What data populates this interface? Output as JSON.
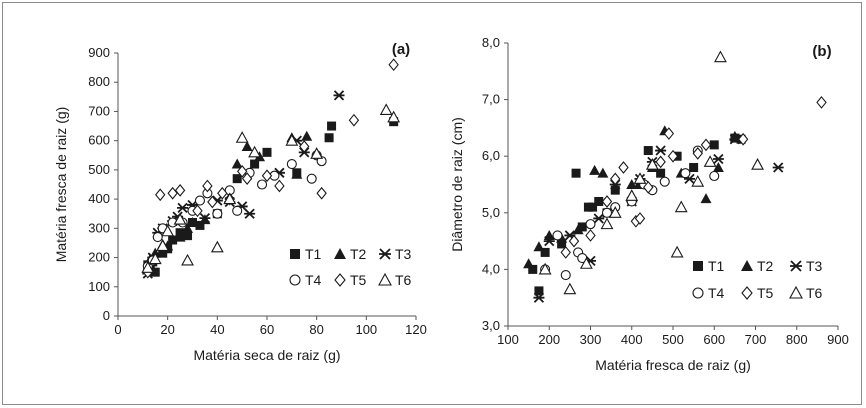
{
  "chart_data": [
    {
      "type": "scatter",
      "panel_label": "(a)",
      "xlabel": "Matéria seca de raiz (g)",
      "ylabel": "Matéria fresca de raiz (g)",
      "xlim": [
        0,
        120
      ],
      "ylim": [
        0,
        900
      ],
      "xticks": [
        "0",
        "20",
        "40",
        "60",
        "80",
        "100",
        "120"
      ],
      "yticks": [
        "0",
        "100",
        "200",
        "300",
        "400",
        "500",
        "600",
        "700",
        "800",
        "900"
      ],
      "grid": false,
      "legend_position": "bottom-right",
      "series": [
        {
          "name": "T1",
          "marker": "square",
          "points": [
            [
              12,
              175
            ],
            [
              13,
              160
            ],
            [
              14,
              185
            ],
            [
              15,
              150
            ],
            [
              18,
              215
            ],
            [
              20,
              230
            ],
            [
              22,
              260
            ],
            [
              25,
              285
            ],
            [
              28,
              275
            ],
            [
              30,
              320
            ],
            [
              33,
              310
            ],
            [
              40,
              350
            ],
            [
              48,
              470
            ],
            [
              55,
              520
            ],
            [
              60,
              560
            ],
            [
              72,
              490
            ],
            [
              85,
              610
            ],
            [
              86,
              650
            ],
            [
              111,
              665
            ]
          ]
        },
        {
          "name": "T2",
          "marker": "triangle",
          "points": [
            [
              12,
              160
            ],
            [
              13,
              195
            ],
            [
              15,
              215
            ],
            [
              18,
              245
            ],
            [
              20,
              240
            ],
            [
              25,
              270
            ],
            [
              28,
              300
            ],
            [
              30,
              320
            ],
            [
              35,
              330
            ],
            [
              48,
              520
            ],
            [
              52,
              580
            ],
            [
              57,
              545
            ],
            [
              70,
              610
            ],
            [
              72,
              485
            ],
            [
              76,
              615
            ]
          ]
        },
        {
          "name": "T3",
          "marker": "star",
          "points": [
            [
              12,
              145
            ],
            [
              14,
              200
            ],
            [
              16,
              285
            ],
            [
              18,
              300
            ],
            [
              22,
              325
            ],
            [
              24,
              340
            ],
            [
              26,
              370
            ],
            [
              30,
              380
            ],
            [
              35,
              335
            ],
            [
              40,
              395
            ],
            [
              45,
              390
            ],
            [
              50,
              375
            ],
            [
              53,
              350
            ],
            [
              65,
              490
            ],
            [
              72,
              600
            ],
            [
              75,
              560
            ],
            [
              89,
              755
            ]
          ]
        },
        {
          "name": "T4",
          "marker": "circle",
          "points": [
            [
              12,
              170
            ],
            [
              14,
              190
            ],
            [
              16,
              270
            ],
            [
              18,
              300
            ],
            [
              22,
              320
            ],
            [
              26,
              320
            ],
            [
              30,
              360
            ],
            [
              33,
              395
            ],
            [
              36,
              420
            ],
            [
              40,
              350
            ],
            [
              45,
              430
            ],
            [
              48,
              360
            ],
            [
              53,
              490
            ],
            [
              58,
              450
            ],
            [
              63,
              480
            ],
            [
              70,
              520
            ],
            [
              78,
              470
            ],
            [
              80,
              550
            ],
            [
              82,
              530
            ]
          ]
        },
        {
          "name": "T5",
          "marker": "diamond",
          "points": [
            [
              12,
              150
            ],
            [
              17,
              415
            ],
            [
              22,
              420
            ],
            [
              25,
              430
            ],
            [
              32,
              360
            ],
            [
              36,
              445
            ],
            [
              38,
              390
            ],
            [
              42,
              420
            ],
            [
              45,
              400
            ],
            [
              50,
              495
            ],
            [
              52,
              470
            ],
            [
              60,
              480
            ],
            [
              65,
              445
            ],
            [
              75,
              580
            ],
            [
              82,
              420
            ],
            [
              95,
              670
            ],
            [
              111,
              860
            ]
          ]
        },
        {
          "name": "T6",
          "marker": "triangle-open",
          "points": [
            [
              12,
              165
            ],
            [
              15,
              195
            ],
            [
              18,
              240
            ],
            [
              20,
              290
            ],
            [
              25,
              330
            ],
            [
              28,
              190
            ],
            [
              40,
              235
            ],
            [
              45,
              400
            ],
            [
              50,
              610
            ],
            [
              55,
              560
            ],
            [
              70,
              600
            ],
            [
              80,
              555
            ],
            [
              108,
              705
            ],
            [
              111,
              680
            ]
          ]
        }
      ]
    },
    {
      "type": "scatter",
      "panel_label": "(b)",
      "xlabel": "Matéria fresca de raiz (g)",
      "ylabel": "Diâmetro de raiz (cm)",
      "xlim": [
        100,
        900
      ],
      "ylim": [
        3.0,
        8.0
      ],
      "xticks": [
        "100",
        "200",
        "300",
        "400",
        "500",
        "600",
        "700",
        "800",
        "900"
      ],
      "yticks": [
        "3,0",
        "4,0",
        "5,0",
        "6,0",
        "7,0",
        "8,0"
      ],
      "grid": false,
      "legend_position": "bottom-right",
      "series": [
        {
          "name": "T1",
          "marker": "square",
          "points": [
            [
              160,
              4.0
            ],
            [
              175,
              3.62
            ],
            [
              190,
              4.3
            ],
            [
              230,
              4.45
            ],
            [
              265,
              5.7
            ],
            [
              280,
              4.75
            ],
            [
              295,
              5.1
            ],
            [
              305,
              5.1
            ],
            [
              320,
              5.2
            ],
            [
              340,
              5.0
            ],
            [
              360,
              5.4
            ],
            [
              420,
              5.5
            ],
            [
              440,
              6.1
            ],
            [
              470,
              5.7
            ],
            [
              510,
              6.0
            ],
            [
              550,
              5.8
            ],
            [
              600,
              6.2
            ],
            [
              650,
              6.32
            ],
            [
              665,
              6.3
            ]
          ]
        },
        {
          "name": "T2",
          "marker": "triangle",
          "points": [
            [
              150,
              4.1
            ],
            [
              175,
              4.4
            ],
            [
              200,
              4.6
            ],
            [
              230,
              4.55
            ],
            [
              270,
              4.7
            ],
            [
              310,
              5.75
            ],
            [
              330,
              5.7
            ],
            [
              400,
              5.5
            ],
            [
              450,
              5.8
            ],
            [
              480,
              6.45
            ],
            [
              520,
              5.7
            ],
            [
              580,
              5.25
            ],
            [
              610,
              5.8
            ],
            [
              650,
              6.35
            ]
          ]
        },
        {
          "name": "T3",
          "marker": "star",
          "points": [
            [
              175,
              3.5
            ],
            [
              200,
              4.5
            ],
            [
              250,
              4.6
            ],
            [
              300,
              4.15
            ],
            [
              320,
              4.9
            ],
            [
              360,
              5.5
            ],
            [
              400,
              5.2
            ],
            [
              420,
              5.6
            ],
            [
              450,
              5.9
            ],
            [
              470,
              6.1
            ],
            [
              540,
              5.6
            ],
            [
              610,
              5.95
            ],
            [
              650,
              6.3
            ],
            [
              755,
              5.8
            ]
          ]
        },
        {
          "name": "T4",
          "marker": "circle",
          "points": [
            [
              190,
              4.0
            ],
            [
              220,
              4.6
            ],
            [
              240,
              3.9
            ],
            [
              270,
              4.3
            ],
            [
              280,
              4.2
            ],
            [
              300,
              4.8
            ],
            [
              340,
              5.0
            ],
            [
              360,
              5.1
            ],
            [
              400,
              5.2
            ],
            [
              430,
              5.5
            ],
            [
              450,
              5.4
            ],
            [
              480,
              5.55
            ],
            [
              530,
              5.7
            ],
            [
              560,
              6.1
            ],
            [
              600,
              5.65
            ]
          ]
        },
        {
          "name": "T5",
          "marker": "diamond",
          "points": [
            [
              240,
              4.3
            ],
            [
              260,
              4.5
            ],
            [
              300,
              4.6
            ],
            [
              340,
              5.2
            ],
            [
              360,
              5.6
            ],
            [
              380,
              5.8
            ],
            [
              410,
              4.85
            ],
            [
              420,
              4.9
            ],
            [
              440,
              5.45
            ],
            [
              470,
              5.9
            ],
            [
              490,
              6.4
            ],
            [
              500,
              6.0
            ],
            [
              560,
              6.05
            ],
            [
              580,
              6.2
            ],
            [
              670,
              6.3
            ],
            [
              860,
              6.95
            ]
          ]
        },
        {
          "name": "T6",
          "marker": "triangle-open",
          "points": [
            [
              190,
              4.0
            ],
            [
              250,
              3.65
            ],
            [
              290,
              4.1
            ],
            [
              340,
              4.8
            ],
            [
              360,
              5.0
            ],
            [
              400,
              5.3
            ],
            [
              420,
              5.6
            ],
            [
              450,
              5.85
            ],
            [
              510,
              4.3
            ],
            [
              520,
              5.1
            ],
            [
              560,
              5.55
            ],
            [
              590,
              5.9
            ],
            [
              615,
              7.75
            ],
            [
              705,
              5.85
            ]
          ]
        }
      ]
    }
  ]
}
